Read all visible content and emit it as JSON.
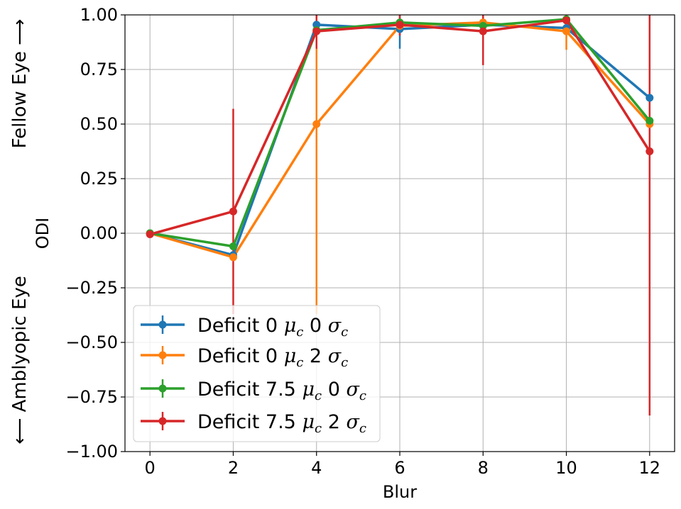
{
  "chart_data": {
    "type": "line",
    "xlabel": "Blur",
    "ylabel": "ODI",
    "side_labels": {
      "top": "Fellow Eye ⟶",
      "bottom": "⟵ Amblyopic Eye"
    },
    "xlim": [
      -0.6,
      12.6
    ],
    "ylim": [
      -1.0,
      1.0
    ],
    "xticks": [
      0,
      2,
      4,
      6,
      8,
      10,
      12
    ],
    "xtick_labels": [
      "0",
      "2",
      "4",
      "6",
      "8",
      "10",
      "12"
    ],
    "yticks": [
      -1.0,
      -0.75,
      -0.5,
      -0.25,
      0.0,
      0.25,
      0.5,
      0.75,
      1.0
    ],
    "ytick_labels": [
      "−1.00",
      "−0.75",
      "−0.50",
      "−0.25",
      "0.00",
      "0.25",
      "0.50",
      "0.75",
      "1.00"
    ],
    "grid": true,
    "legend_position": "lower-left",
    "x": [
      0,
      2,
      4,
      6,
      8,
      10,
      12
    ],
    "series": [
      {
        "name": "Deficit 0 μ_c 0 σ_c",
        "legend": {
          "prefix": "Deficit 0 ",
          "mu": "μ",
          "mid": " 0 ",
          "sigma": "σ",
          "sub": "c"
        },
        "color": "#1f77b4",
        "values": [
          0.0,
          -0.1,
          0.955,
          0.935,
          0.955,
          0.94,
          0.62
        ],
        "err": [
          0.0,
          0.0,
          0.0,
          0.09,
          0.0,
          0.0,
          0.0
        ]
      },
      {
        "name": "Deficit 0 μ_c 2 σ_c",
        "legend": {
          "prefix": "Deficit 0 ",
          "mu": "μ",
          "mid": " 2 ",
          "sigma": "σ",
          "sub": "c"
        },
        "color": "#ff7f0e",
        "values": [
          0.0,
          -0.11,
          0.5,
          0.95,
          0.965,
          0.925,
          0.5
        ],
        "err": [
          0.0,
          0.0,
          0.87,
          0.0,
          0.0,
          0.085,
          0.0
        ]
      },
      {
        "name": "Deficit 7.5 μ_c 0 σ_c",
        "legend": {
          "prefix": "Deficit 7.5 ",
          "mu": "μ",
          "mid": " 0 ",
          "sigma": "σ",
          "sub": "c"
        },
        "color": "#2ca02c",
        "values": [
          0.0,
          -0.06,
          0.93,
          0.965,
          0.95,
          0.98,
          0.515
        ],
        "err": [
          0.0,
          0.0,
          0.0,
          0.0,
          0.0,
          0.0,
          0.0
        ]
      },
      {
        "name": "Deficit 7.5 μ_c 2 σ_c",
        "legend": {
          "prefix": "Deficit 7.5 ",
          "mu": "μ",
          "mid": " 2 ",
          "sigma": "σ",
          "sub": "c"
        },
        "color": "#d62728",
        "values": [
          -0.005,
          0.1,
          0.925,
          0.955,
          0.925,
          0.975,
          0.375
        ],
        "err": [
          0.0,
          0.47,
          0.08,
          0.05,
          0.155,
          0.0,
          1.21
        ]
      }
    ]
  }
}
